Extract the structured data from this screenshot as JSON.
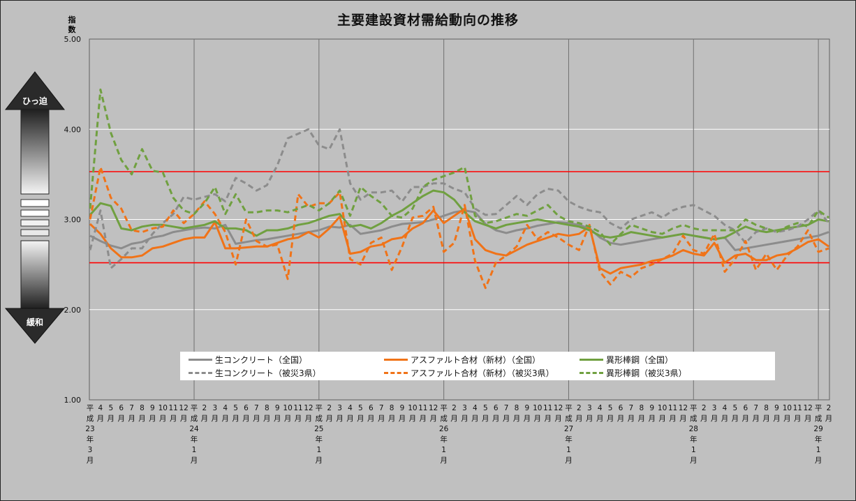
{
  "chart_data": {
    "type": "line",
    "title": "主要建設資材需給動向の推移",
    "ylabel": "指数",
    "ylim": [
      1.0,
      5.0
    ],
    "yticks": [
      "1.00",
      "2.00",
      "3.00",
      "4.00",
      "5.00"
    ],
    "xticks": [
      "平成23年3月",
      "4月",
      "5月",
      "6月",
      "7月",
      "8月",
      "9月",
      "10月",
      "11月",
      "12月",
      "平成24年1月",
      "2月",
      "3月",
      "4月",
      "5月",
      "6月",
      "7月",
      "8月",
      "9月",
      "10月",
      "11月",
      "12月",
      "平成25年1月",
      "2月",
      "3月",
      "4月",
      "5月",
      "6月",
      "7月",
      "8月",
      "9月",
      "10月",
      "11月",
      "12月",
      "平成26年1月",
      "2月",
      "3月",
      "4月",
      "5月",
      "6月",
      "7月",
      "8月",
      "9月",
      "10月",
      "11月",
      "12月",
      "平成27年1月",
      "2月",
      "3月",
      "4月",
      "5月",
      "6月",
      "7月",
      "8月",
      "9月",
      "10月",
      "11月",
      "12月",
      "平成28年1月",
      "2月",
      "3月",
      "4月",
      "5月",
      "6月",
      "7月",
      "8月",
      "9月",
      "10月",
      "11月",
      "12月",
      "平成29年1月",
      "2月"
    ],
    "reference_lines": [
      3.53,
      2.52
    ],
    "arrow_top_label": "ひっ迫",
    "arrow_bottom_label": "緩和",
    "grid": true,
    "legend_position": "bottom",
    "series": [
      {
        "name": "生コンクリート（全国）",
        "color": "#8c8c8c",
        "dash": false,
        "values": [
          2.82,
          2.76,
          2.71,
          2.68,
          2.73,
          2.75,
          2.8,
          2.82,
          2.86,
          2.88,
          2.9,
          2.91,
          2.9,
          2.94,
          2.73,
          2.75,
          2.77,
          2.78,
          2.8,
          2.82,
          2.84,
          2.86,
          2.88,
          2.92,
          2.91,
          2.94,
          2.84,
          2.86,
          2.88,
          2.92,
          2.95,
          2.96,
          2.97,
          3.0,
          3.04,
          3.08,
          3.1,
          3.08,
          2.95,
          2.88,
          2.85,
          2.88,
          2.9,
          2.93,
          2.95,
          2.97,
          2.96,
          2.94,
          2.9,
          2.8,
          2.74,
          2.72,
          2.74,
          2.76,
          2.78,
          2.8,
          2.82,
          2.84,
          2.82,
          2.8,
          2.78,
          2.8,
          2.66,
          2.68,
          2.7,
          2.72,
          2.74,
          2.76,
          2.78,
          2.8,
          2.82,
          2.86
        ]
      },
      {
        "name": "アスファルト合材（新材）（全国）",
        "color": "#f07318",
        "dash": false,
        "values": [
          2.95,
          2.84,
          2.68,
          2.58,
          2.58,
          2.6,
          2.68,
          2.7,
          2.74,
          2.78,
          2.8,
          2.8,
          2.97,
          2.68,
          2.68,
          2.69,
          2.7,
          2.7,
          2.74,
          2.78,
          2.8,
          2.86,
          2.8,
          2.9,
          3.03,
          2.62,
          2.64,
          2.7,
          2.72,
          2.78,
          2.8,
          2.9,
          2.96,
          3.1,
          2.96,
          3.04,
          3.12,
          2.78,
          2.66,
          2.62,
          2.6,
          2.66,
          2.72,
          2.76,
          2.8,
          2.84,
          2.82,
          2.84,
          2.92,
          2.46,
          2.4,
          2.46,
          2.48,
          2.5,
          2.54,
          2.56,
          2.6,
          2.66,
          2.62,
          2.6,
          2.74,
          2.52,
          2.6,
          2.62,
          2.55,
          2.55,
          2.6,
          2.62,
          2.68,
          2.75,
          2.78,
          2.7
        ]
      },
      {
        "name": "異形棒鋼（全国）",
        "color": "#70a040",
        "dash": false,
        "values": [
          3.05,
          3.18,
          3.15,
          2.9,
          2.88,
          2.92,
          2.94,
          2.94,
          2.92,
          2.9,
          2.92,
          2.94,
          2.98,
          2.9,
          2.9,
          2.88,
          2.82,
          2.88,
          2.88,
          2.9,
          2.94,
          2.96,
          3.0,
          3.04,
          3.06,
          2.92,
          2.94,
          2.9,
          2.96,
          3.04,
          3.1,
          3.18,
          3.26,
          3.32,
          3.3,
          3.22,
          3.08,
          2.98,
          2.94,
          2.9,
          2.94,
          2.96,
          2.98,
          3.0,
          2.98,
          2.96,
          2.94,
          2.92,
          2.88,
          2.82,
          2.8,
          2.82,
          2.86,
          2.84,
          2.82,
          2.8,
          2.82,
          2.84,
          2.82,
          2.8,
          2.78,
          2.8,
          2.86,
          2.92,
          2.88,
          2.86,
          2.88,
          2.9,
          2.92,
          2.94,
          3.0,
          2.98
        ]
      },
      {
        "name": "生コンクリート（被災3県）",
        "color": "#8c8c8c",
        "dash": true,
        "values": [
          2.66,
          3.1,
          2.46,
          2.56,
          2.68,
          2.68,
          2.84,
          2.96,
          3.06,
          3.25,
          3.22,
          3.25,
          3.28,
          3.2,
          3.46,
          3.4,
          3.32,
          3.38,
          3.6,
          3.9,
          3.95,
          4.0,
          3.82,
          3.78,
          4.0,
          3.4,
          3.22,
          3.3,
          3.3,
          3.32,
          3.2,
          3.36,
          3.36,
          3.4,
          3.4,
          3.34,
          3.3,
          3.12,
          3.05,
          3.06,
          3.16,
          3.26,
          3.16,
          3.28,
          3.34,
          3.32,
          3.2,
          3.14,
          3.1,
          3.08,
          2.96,
          2.9,
          3.0,
          3.04,
          3.08,
          3.02,
          3.1,
          3.14,
          3.16,
          3.1,
          3.04,
          2.94,
          2.88,
          2.74,
          2.86,
          2.9,
          2.86,
          2.88,
          2.92,
          3.0,
          3.1,
          2.96
        ]
      },
      {
        "name": "アスファルト合材（新材）（被災3県）",
        "color": "#f07318",
        "dash": true,
        "values": [
          3.0,
          3.58,
          3.24,
          3.12,
          2.88,
          2.86,
          2.9,
          2.92,
          3.1,
          2.96,
          3.06,
          3.2,
          3.06,
          2.86,
          2.5,
          3.0,
          2.76,
          2.7,
          2.72,
          2.34,
          3.28,
          3.14,
          3.18,
          3.18,
          3.3,
          2.56,
          2.5,
          2.74,
          2.8,
          2.44,
          2.7,
          3.02,
          3.04,
          3.14,
          2.64,
          2.74,
          3.16,
          2.54,
          2.24,
          2.52,
          2.6,
          2.7,
          2.94,
          2.78,
          2.86,
          2.8,
          2.72,
          2.66,
          2.94,
          2.42,
          2.28,
          2.42,
          2.36,
          2.46,
          2.5,
          2.56,
          2.62,
          2.82,
          2.66,
          2.62,
          2.84,
          2.42,
          2.56,
          2.76,
          2.44,
          2.62,
          2.44,
          2.6,
          2.7,
          2.88,
          2.64,
          2.68
        ]
      },
      {
        "name": "異形棒鋼（被災3県）",
        "color": "#70a040",
        "dash": true,
        "values": [
          3.12,
          4.44,
          3.96,
          3.66,
          3.5,
          3.78,
          3.54,
          3.52,
          3.24,
          3.1,
          3.06,
          3.18,
          3.36,
          3.06,
          3.28,
          3.08,
          3.08,
          3.1,
          3.1,
          3.08,
          3.12,
          3.16,
          3.1,
          3.18,
          3.32,
          3.04,
          3.36,
          3.26,
          3.18,
          3.04,
          3.02,
          3.12,
          3.36,
          3.44,
          3.48,
          3.52,
          3.58,
          3.04,
          2.96,
          2.98,
          3.02,
          3.06,
          3.04,
          3.1,
          3.16,
          3.04,
          2.98,
          2.96,
          2.92,
          2.86,
          2.72,
          2.84,
          2.94,
          2.9,
          2.86,
          2.84,
          2.9,
          2.94,
          2.9,
          2.88,
          2.88,
          2.88,
          2.88,
          3.0,
          2.94,
          2.9,
          2.86,
          2.92,
          2.96,
          2.92,
          3.1,
          3.02
        ]
      }
    ]
  }
}
